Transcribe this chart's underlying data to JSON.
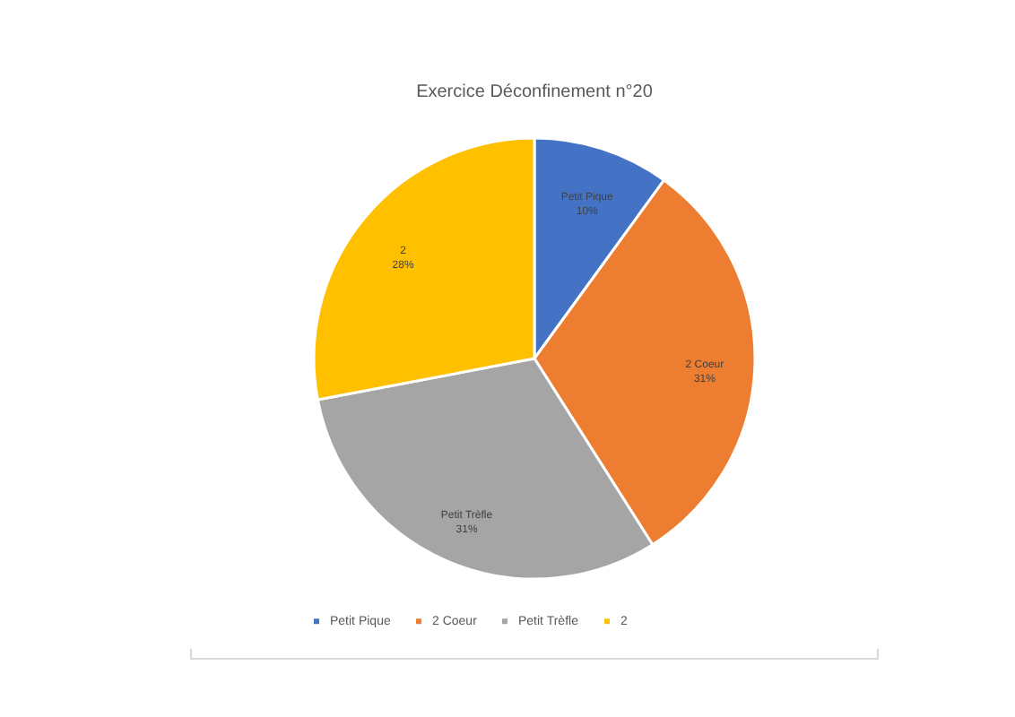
{
  "chart_data": {
    "type": "pie",
    "title": "Exercice Déconfinement n°20",
    "categories": [
      "Petit Pique",
      "2 Coeur",
      "Petit Trèfle",
      "2"
    ],
    "values": [
      10,
      31,
      31,
      28
    ],
    "value_labels": [
      "10%",
      "31%",
      "31%",
      "28%"
    ],
    "colors": [
      "#4472c4",
      "#ed7d31",
      "#a5a5a5",
      "#ffc000"
    ],
    "legend": "bottom"
  }
}
